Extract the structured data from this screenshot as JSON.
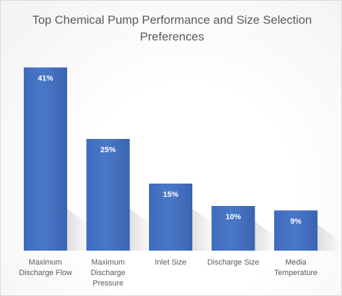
{
  "chart_data": {
    "type": "bar",
    "title": "Top Chemical Pump Performance and Size Selection Preferences",
    "categories": [
      [
        "Maximum",
        "Discharge Flow"
      ],
      [
        "Maximum",
        "Discharge",
        "Pressure"
      ],
      [
        "Inlet Size"
      ],
      [
        "Discharge Size"
      ],
      [
        "Media",
        "Temperature"
      ]
    ],
    "values": [
      41,
      25,
      15,
      10,
      9
    ],
    "data_labels": [
      "41%",
      "25%",
      "15%",
      "10%",
      "9%"
    ],
    "bar_color": "#4472c4",
    "ylim": [
      0,
      45
    ],
    "grid": false,
    "legend": "none",
    "xlabel": "",
    "ylabel": ""
  }
}
